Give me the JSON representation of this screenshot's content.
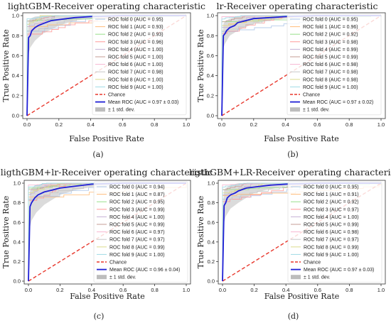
{
  "chart_data": [
    {
      "type": "line",
      "panel_label": "(a)",
      "title": "lightGBM-Receiver operating characteristic",
      "xlabel": "False Positive Rate",
      "ylabel": "True Positive Rate",
      "xlim": [
        0,
        1
      ],
      "ylim": [
        0,
        1
      ],
      "xticks": [
        "0.0",
        "0.2",
        "0.4",
        "0.6",
        "0.8",
        "1.0"
      ],
      "yticks": [
        "0.0",
        "0.2",
        "0.4",
        "0.6",
        "0.8",
        "1.0"
      ],
      "legend_position": "right",
      "folds": [
        {
          "name": "ROC fold 0 (AUC = 0.95)",
          "color": "#aec7e8"
        },
        {
          "name": "ROC fold 1 (AUC = 0.93)",
          "color": "#ffbb78"
        },
        {
          "name": "ROC fold 2 (AUC = 0.93)",
          "color": "#98df8a"
        },
        {
          "name": "ROC fold 3 (AUC = 0.96)",
          "color": "#ff9896"
        },
        {
          "name": "ROC fold 4 (AUC = 1.00)",
          "color": "#c5b0d5"
        },
        {
          "name": "ROC fold 5 (AUC = 1.00)",
          "color": "#c49c94"
        },
        {
          "name": "ROC fold 6 (AUC = 1.00)",
          "color": "#f7b6d2"
        },
        {
          "name": "ROC fold 7 (AUC = 0.98)",
          "color": "#c7c7c7"
        },
        {
          "name": "ROC fold 8 (AUC = 1.00)",
          "color": "#dbdb8d"
        },
        {
          "name": "ROC fold 9 (AUC = 1.00)",
          "color": "#9edae5"
        }
      ],
      "chance_label": "Chance",
      "mean_label": "Mean ROC (AUC = 0.97 ± 0.03)",
      "std_label": "± 1 std. dev.",
      "mean_roc": {
        "x": [
          0,
          0.01,
          0.02,
          0.03,
          0.05,
          0.07,
          0.1,
          0.15,
          0.2,
          0.3,
          0.4,
          0.6,
          1.0
        ],
        "y": [
          0,
          0.78,
          0.8,
          0.85,
          0.88,
          0.9,
          0.92,
          0.95,
          0.96,
          0.98,
          0.99,
          1.0,
          1.0
        ]
      },
      "std_band": {
        "x": [
          0,
          0.01,
          0.02,
          0.05,
          0.1,
          0.2,
          0.3,
          0.4,
          1.0
        ],
        "upper": [
          0.65,
          0.95,
          0.97,
          0.99,
          1.0,
          1.0,
          1.0,
          1.0,
          1.0
        ],
        "lower": [
          0,
          0.62,
          0.68,
          0.75,
          0.82,
          0.9,
          0.95,
          0.97,
          1.0
        ]
      }
    },
    {
      "type": "line",
      "panel_label": "(b)",
      "title": "lr-Receiver operating characteristic",
      "xlabel": "False Positive Rate",
      "ylabel": "True Positive Rate",
      "xlim": [
        0,
        1
      ],
      "ylim": [
        0,
        1
      ],
      "xticks": [
        "0.0",
        "0.2",
        "0.4",
        "0.6",
        "0.8",
        "1.0"
      ],
      "yticks": [
        "0.0",
        "0.2",
        "0.4",
        "0.6",
        "0.8",
        "1.0"
      ],
      "legend_position": "right",
      "folds": [
        {
          "name": "ROC fold 0 (AUC = 0.95)",
          "color": "#aec7e8"
        },
        {
          "name": "ROC fold 1 (AUC = 0.96)",
          "color": "#ffbb78"
        },
        {
          "name": "ROC fold 2 (AUC = 0.92)",
          "color": "#98df8a"
        },
        {
          "name": "ROC fold 3 (AUC = 0.98)",
          "color": "#ff9896"
        },
        {
          "name": "ROC fold 4 (AUC = 0.99)",
          "color": "#c5b0d5"
        },
        {
          "name": "ROC fold 5 (AUC = 0.99)",
          "color": "#c49c94"
        },
        {
          "name": "ROC fold 6 (AUC = 0.98)",
          "color": "#f7b6d2"
        },
        {
          "name": "ROC fold 7 (AUC = 0.98)",
          "color": "#c7c7c7"
        },
        {
          "name": "ROC fold 8 (AUC = 0.98)",
          "color": "#dbdb8d"
        },
        {
          "name": "ROC fold 9 (AUC = 1.00)",
          "color": "#9edae5"
        }
      ],
      "chance_label": "Chance",
      "mean_label": "Mean ROC (AUC = 0.97 ± 0.02)",
      "std_label": "± 1 std. dev.",
      "mean_roc": {
        "x": [
          0,
          0.01,
          0.02,
          0.03,
          0.05,
          0.08,
          0.1,
          0.15,
          0.2,
          0.3,
          0.4,
          0.6,
          1.0
        ],
        "y": [
          0,
          0.8,
          0.82,
          0.85,
          0.88,
          0.9,
          0.93,
          0.95,
          0.97,
          0.98,
          0.99,
          1.0,
          1.0
        ]
      },
      "std_band": {
        "x": [
          0,
          0.01,
          0.02,
          0.05,
          0.1,
          0.2,
          0.3,
          0.4,
          1.0
        ],
        "upper": [
          0.7,
          0.92,
          0.94,
          0.97,
          0.99,
          1.0,
          1.0,
          1.0,
          1.0
        ],
        "lower": [
          0,
          0.68,
          0.72,
          0.8,
          0.85,
          0.92,
          0.95,
          0.97,
          1.0
        ]
      }
    },
    {
      "type": "line",
      "panel_label": "(c)",
      "title": "ligthGBM+lr-Receiver operating characteristic",
      "xlabel": "False Positive Rate",
      "ylabel": "True Positive Rate",
      "xlim": [
        0,
        1
      ],
      "ylim": [
        0,
        1
      ],
      "xticks": [
        "0.0",
        "0.2",
        "0.4",
        "0.6",
        "0.8",
        "1.0"
      ],
      "yticks": [
        "0.0",
        "0.2",
        "0.4",
        "0.6",
        "0.8",
        "1.0"
      ],
      "legend_position": "right",
      "folds": [
        {
          "name": "ROC fold 0 (AUC = 0.94)",
          "color": "#aec7e8"
        },
        {
          "name": "ROC fold 1 (AUC = 0.87)",
          "color": "#ffbb78"
        },
        {
          "name": "ROC fold 2 (AUC = 0.95)",
          "color": "#98df8a"
        },
        {
          "name": "ROC fold 3 (AUC = 0.99)",
          "color": "#ff9896"
        },
        {
          "name": "ROC fold 4 (AUC = 1.00)",
          "color": "#c5b0d5"
        },
        {
          "name": "ROC fold 5 (AUC = 0.99)",
          "color": "#c49c94"
        },
        {
          "name": "ROC fold 6 (AUC = 0.97)",
          "color": "#f7b6d2"
        },
        {
          "name": "ROC fold 7 (AUC = 0.97)",
          "color": "#c7c7c7"
        },
        {
          "name": "ROC fold 8 (AUC = 0.99)",
          "color": "#dbdb8d"
        },
        {
          "name": "ROC fold 9 (AUC = 1.00)",
          "color": "#9edae5"
        }
      ],
      "chance_label": "Chance",
      "mean_label": "Mean ROC (AUC = 0.96 ± 0.04)",
      "std_label": "± 1 std. dev.",
      "mean_roc": {
        "x": [
          0,
          0.01,
          0.02,
          0.04,
          0.06,
          0.1,
          0.15,
          0.2,
          0.3,
          0.4,
          0.6,
          1.0
        ],
        "y": [
          0,
          0.76,
          0.8,
          0.85,
          0.88,
          0.91,
          0.93,
          0.95,
          0.97,
          0.99,
          1.0,
          1.0
        ]
      },
      "std_band": {
        "x": [
          0,
          0.01,
          0.02,
          0.05,
          0.1,
          0.2,
          0.3,
          0.4,
          1.0
        ],
        "upper": [
          0.65,
          0.92,
          0.95,
          0.98,
          1.0,
          1.0,
          1.0,
          1.0,
          1.0
        ],
        "lower": [
          0,
          0.55,
          0.62,
          0.7,
          0.78,
          0.88,
          0.93,
          0.96,
          1.0
        ]
      }
    },
    {
      "type": "line",
      "panel_label": "(d)",
      "title": "ligthGBM+LR-Receiver operating characteristic",
      "xlabel": "False Positive Rate",
      "ylabel": "True Positive Rate",
      "xlim": [
        0,
        1
      ],
      "ylim": [
        0,
        1
      ],
      "xticks": [
        "0.0",
        "0.2",
        "0.4",
        "0.6",
        "0.8",
        "1.0"
      ],
      "yticks": [
        "0.0",
        "0.2",
        "0.4",
        "0.6",
        "0.8",
        "1.0"
      ],
      "legend_position": "right",
      "folds": [
        {
          "name": "ROC fold 0 (AUC = 0.95)",
          "color": "#aec7e8"
        },
        {
          "name": "ROC fold 1 (AUC = 0.91)",
          "color": "#ffbb78"
        },
        {
          "name": "ROC fold 2 (AUC = 0.92)",
          "color": "#98df8a"
        },
        {
          "name": "ROC fold 3 (AUC = 0.97)",
          "color": "#ff9896"
        },
        {
          "name": "ROC fold 4 (AUC = 1.00)",
          "color": "#c5b0d5"
        },
        {
          "name": "ROC fold 5 (AUC = 0.99)",
          "color": "#c49c94"
        },
        {
          "name": "ROC fold 6 (AUC = 0.98)",
          "color": "#f7b6d2"
        },
        {
          "name": "ROC fold 7 (AUC = 0.97)",
          "color": "#c7c7c7"
        },
        {
          "name": "ROC fold 8 (AUC = 0.99)",
          "color": "#dbdb8d"
        },
        {
          "name": "ROC fold 9 (AUC = 1.00)",
          "color": "#9edae5"
        }
      ],
      "chance_label": "Chance",
      "mean_label": "Mean ROC (AUC = 0.97 ± 0.03)",
      "std_label": "± 1 std. dev.",
      "mean_roc": {
        "x": [
          0,
          0.01,
          0.02,
          0.03,
          0.05,
          0.08,
          0.1,
          0.15,
          0.2,
          0.3,
          0.4,
          0.6,
          1.0
        ],
        "y": [
          0,
          0.77,
          0.8,
          0.85,
          0.88,
          0.9,
          0.92,
          0.95,
          0.96,
          0.98,
          0.99,
          1.0,
          1.0
        ]
      },
      "std_band": {
        "x": [
          0,
          0.01,
          0.02,
          0.05,
          0.1,
          0.2,
          0.3,
          0.4,
          1.0
        ],
        "upper": [
          0.68,
          0.93,
          0.95,
          0.98,
          1.0,
          1.0,
          1.0,
          1.0,
          1.0
        ],
        "lower": [
          0,
          0.6,
          0.66,
          0.74,
          0.8,
          0.9,
          0.94,
          0.97,
          1.0
        ]
      }
    }
  ],
  "colors": {
    "mean_roc": "#1f1fd6",
    "chance": "#e8372c",
    "std_band": "#bdbdbd",
    "axis": "#333333"
  }
}
